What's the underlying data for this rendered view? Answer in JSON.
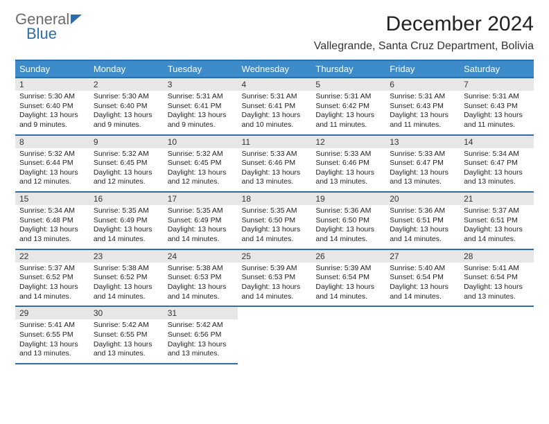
{
  "logo": {
    "text1": "General",
    "text2": "Blue"
  },
  "title": "December 2024",
  "location": "Vallegrande, Santa Cruz Department, Bolivia",
  "colors": {
    "header_bg": "#3d8bc9",
    "header_border": "#2d6ea8",
    "daynum_bg": "#e7e7e7",
    "logo_gray": "#6b6b6b",
    "logo_blue": "#2d6ea8"
  },
  "columns": [
    "Sunday",
    "Monday",
    "Tuesday",
    "Wednesday",
    "Thursday",
    "Friday",
    "Saturday"
  ],
  "weeks": [
    [
      {
        "n": "1",
        "sr": "5:30 AM",
        "ss": "6:40 PM",
        "dl": "13 hours and 9 minutes."
      },
      {
        "n": "2",
        "sr": "5:30 AM",
        "ss": "6:40 PM",
        "dl": "13 hours and 9 minutes."
      },
      {
        "n": "3",
        "sr": "5:31 AM",
        "ss": "6:41 PM",
        "dl": "13 hours and 9 minutes."
      },
      {
        "n": "4",
        "sr": "5:31 AM",
        "ss": "6:41 PM",
        "dl": "13 hours and 10 minutes."
      },
      {
        "n": "5",
        "sr": "5:31 AM",
        "ss": "6:42 PM",
        "dl": "13 hours and 11 minutes."
      },
      {
        "n": "6",
        "sr": "5:31 AM",
        "ss": "6:43 PM",
        "dl": "13 hours and 11 minutes."
      },
      {
        "n": "7",
        "sr": "5:31 AM",
        "ss": "6:43 PM",
        "dl": "13 hours and 11 minutes."
      }
    ],
    [
      {
        "n": "8",
        "sr": "5:32 AM",
        "ss": "6:44 PM",
        "dl": "13 hours and 12 minutes."
      },
      {
        "n": "9",
        "sr": "5:32 AM",
        "ss": "6:45 PM",
        "dl": "13 hours and 12 minutes."
      },
      {
        "n": "10",
        "sr": "5:32 AM",
        "ss": "6:45 PM",
        "dl": "13 hours and 12 minutes."
      },
      {
        "n": "11",
        "sr": "5:33 AM",
        "ss": "6:46 PM",
        "dl": "13 hours and 13 minutes."
      },
      {
        "n": "12",
        "sr": "5:33 AM",
        "ss": "6:46 PM",
        "dl": "13 hours and 13 minutes."
      },
      {
        "n": "13",
        "sr": "5:33 AM",
        "ss": "6:47 PM",
        "dl": "13 hours and 13 minutes."
      },
      {
        "n": "14",
        "sr": "5:34 AM",
        "ss": "6:47 PM",
        "dl": "13 hours and 13 minutes."
      }
    ],
    [
      {
        "n": "15",
        "sr": "5:34 AM",
        "ss": "6:48 PM",
        "dl": "13 hours and 13 minutes."
      },
      {
        "n": "16",
        "sr": "5:35 AM",
        "ss": "6:49 PM",
        "dl": "13 hours and 14 minutes."
      },
      {
        "n": "17",
        "sr": "5:35 AM",
        "ss": "6:49 PM",
        "dl": "13 hours and 14 minutes."
      },
      {
        "n": "18",
        "sr": "5:35 AM",
        "ss": "6:50 PM",
        "dl": "13 hours and 14 minutes."
      },
      {
        "n": "19",
        "sr": "5:36 AM",
        "ss": "6:50 PM",
        "dl": "13 hours and 14 minutes."
      },
      {
        "n": "20",
        "sr": "5:36 AM",
        "ss": "6:51 PM",
        "dl": "13 hours and 14 minutes."
      },
      {
        "n": "21",
        "sr": "5:37 AM",
        "ss": "6:51 PM",
        "dl": "13 hours and 14 minutes."
      }
    ],
    [
      {
        "n": "22",
        "sr": "5:37 AM",
        "ss": "6:52 PM",
        "dl": "13 hours and 14 minutes."
      },
      {
        "n": "23",
        "sr": "5:38 AM",
        "ss": "6:52 PM",
        "dl": "13 hours and 14 minutes."
      },
      {
        "n": "24",
        "sr": "5:38 AM",
        "ss": "6:53 PM",
        "dl": "13 hours and 14 minutes."
      },
      {
        "n": "25",
        "sr": "5:39 AM",
        "ss": "6:53 PM",
        "dl": "13 hours and 14 minutes."
      },
      {
        "n": "26",
        "sr": "5:39 AM",
        "ss": "6:54 PM",
        "dl": "13 hours and 14 minutes."
      },
      {
        "n": "27",
        "sr": "5:40 AM",
        "ss": "6:54 PM",
        "dl": "13 hours and 14 minutes."
      },
      {
        "n": "28",
        "sr": "5:41 AM",
        "ss": "6:54 PM",
        "dl": "13 hours and 13 minutes."
      }
    ],
    [
      {
        "n": "29",
        "sr": "5:41 AM",
        "ss": "6:55 PM",
        "dl": "13 hours and 13 minutes."
      },
      {
        "n": "30",
        "sr": "5:42 AM",
        "ss": "6:55 PM",
        "dl": "13 hours and 13 minutes."
      },
      {
        "n": "31",
        "sr": "5:42 AM",
        "ss": "6:56 PM",
        "dl": "13 hours and 13 minutes."
      },
      null,
      null,
      null,
      null
    ]
  ],
  "labels": {
    "sunrise": "Sunrise:",
    "sunset": "Sunset:",
    "daylight": "Daylight:"
  }
}
